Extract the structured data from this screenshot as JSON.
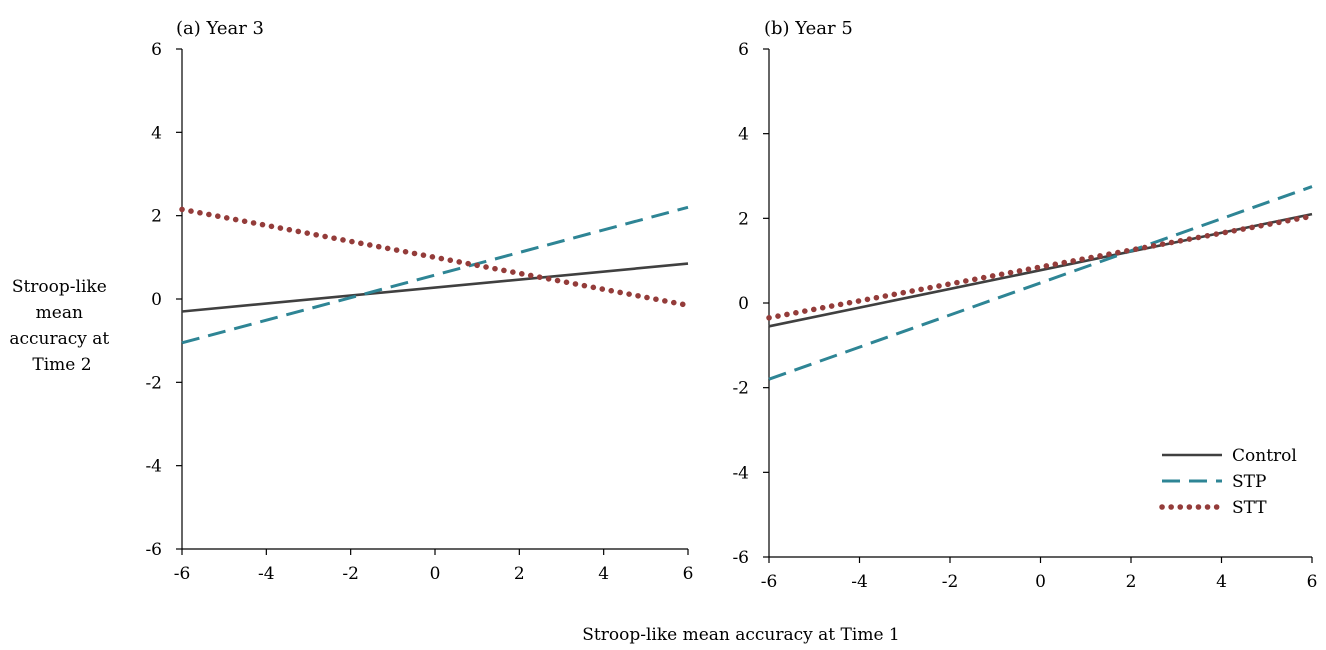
{
  "chart_data": {
    "type": "line",
    "shared_ylabel_lines": [
      "Stroop-like",
      "mean",
      "accuracy at",
      "Time 2"
    ],
    "shared_xlabel": "Stroop-like mean accuracy at Time 1",
    "legend": {
      "placement": "bottom-right of panel (b)",
      "entries": [
        {
          "name": "Control",
          "style": "solid",
          "color": "#404040"
        },
        {
          "name": "STP",
          "style": "dashed",
          "color": "#2e8595"
        },
        {
          "name": "STT",
          "style": "dotted",
          "color": "#943c3a"
        }
      ]
    },
    "panels": [
      {
        "title": "(a)  Year 3",
        "xlim": [
          -6,
          6
        ],
        "ylim": [
          -6,
          6
        ],
        "xticks": [
          "-6",
          "-4",
          "-2",
          "0",
          "2",
          "4",
          "6"
        ],
        "yticks": [
          "-6",
          "-4",
          "-2",
          "0",
          "2",
          "4",
          "6"
        ],
        "grid": false,
        "series": [
          {
            "name": "Control",
            "x": [
              -6,
              6
            ],
            "y": [
              -0.3,
              0.85
            ]
          },
          {
            "name": "STP",
            "x": [
              -6,
              6
            ],
            "y": [
              -1.05,
              2.2
            ]
          },
          {
            "name": "STT",
            "x": [
              -6,
              6
            ],
            "y": [
              2.15,
              -0.15
            ]
          }
        ]
      },
      {
        "title": "(b)  Year 5",
        "xlim": [
          -6,
          6
        ],
        "ylim": [
          -6,
          6
        ],
        "xticks": [
          "-6",
          "-4",
          "-2",
          "0",
          "2",
          "4",
          "6"
        ],
        "yticks": [
          "-6",
          "-4",
          "-2",
          "0",
          "2",
          "4",
          "6"
        ],
        "grid": false,
        "series": [
          {
            "name": "Control",
            "x": [
              -6,
              6
            ],
            "y": [
              -0.55,
              2.1
            ]
          },
          {
            "name": "STP",
            "x": [
              -6,
              6
            ],
            "y": [
              -1.8,
              2.75
            ]
          },
          {
            "name": "STT",
            "x": [
              -6,
              6
            ],
            "y": [
              -0.35,
              2.05
            ]
          }
        ]
      }
    ]
  }
}
